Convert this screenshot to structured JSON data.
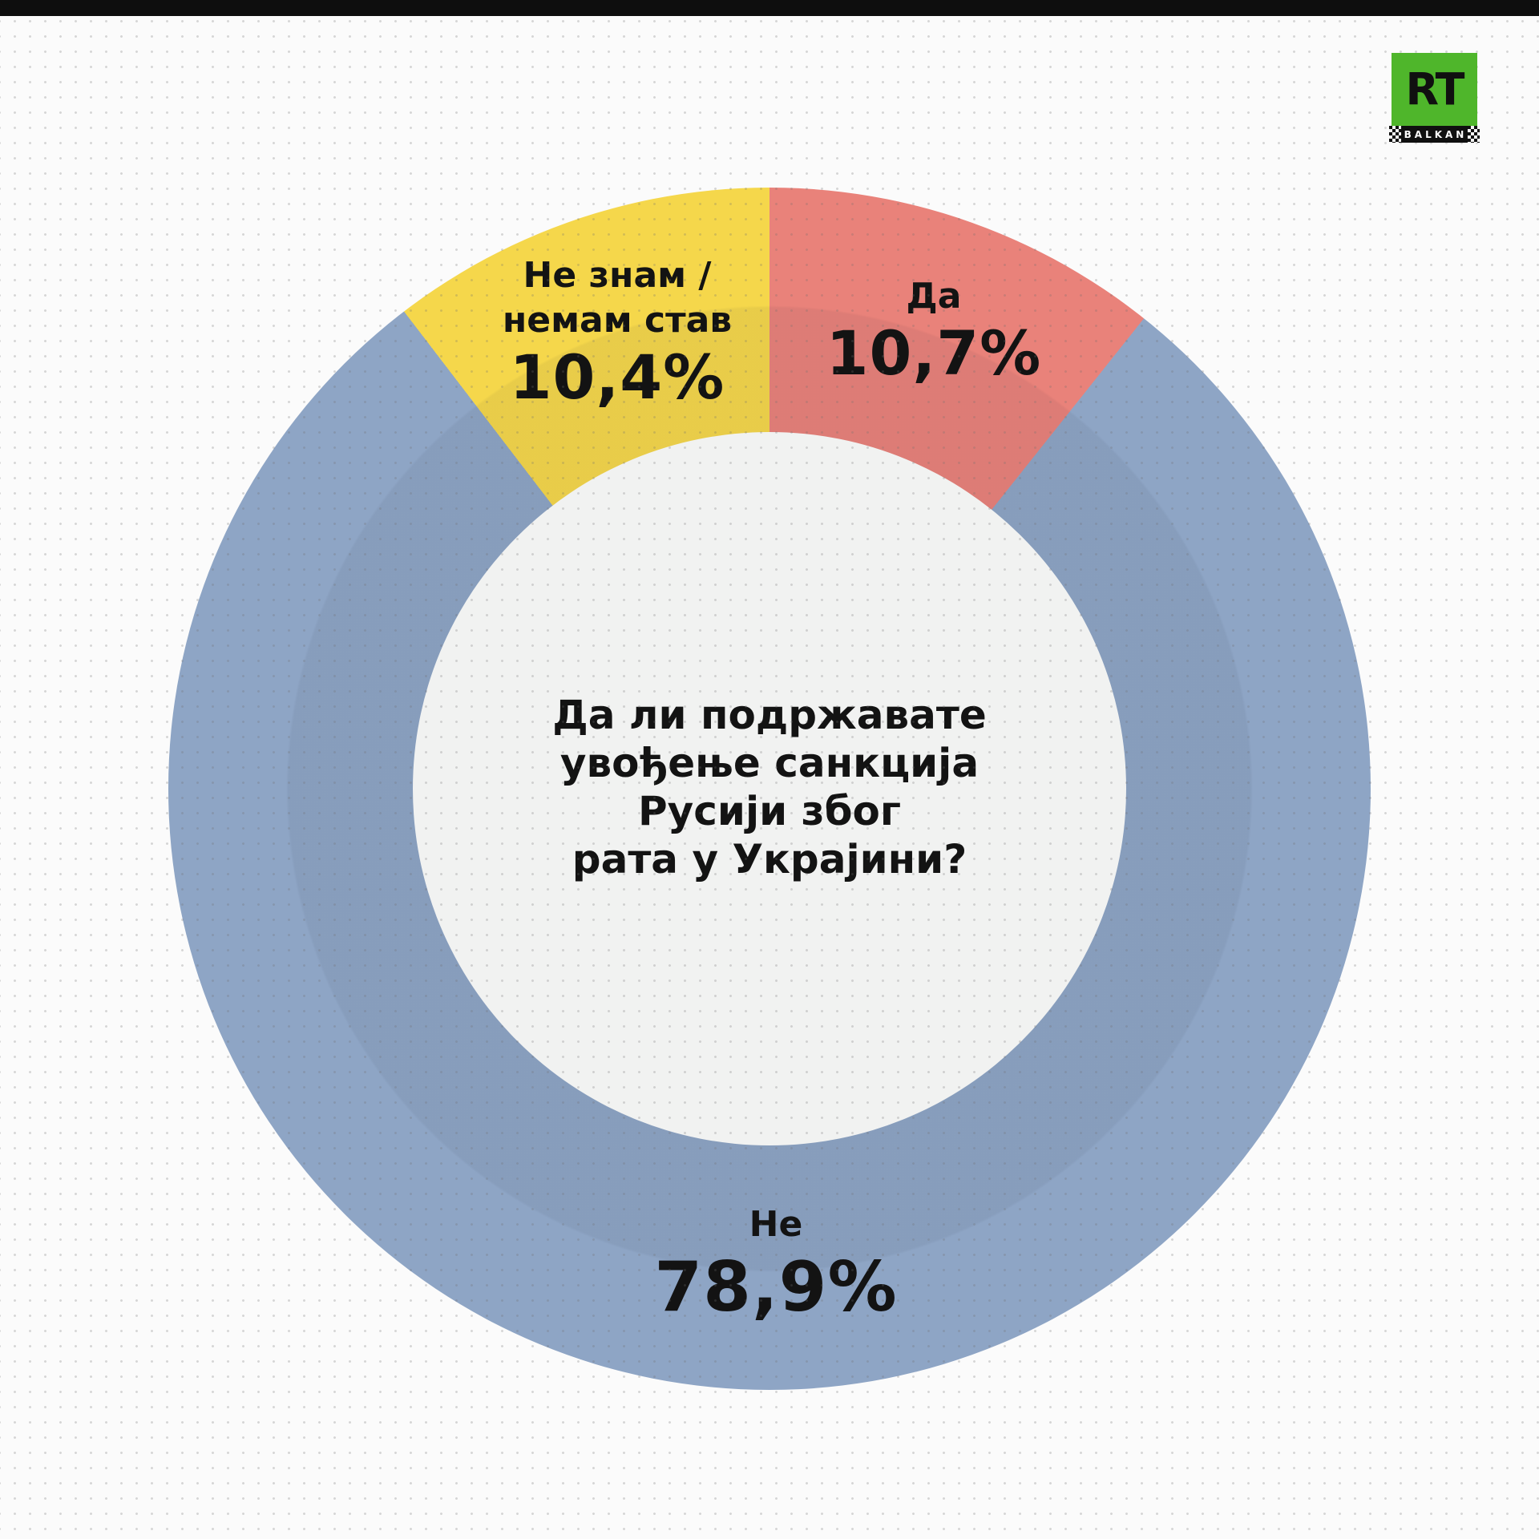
{
  "page": {
    "background": "#fbfbfb",
    "top_bar_color": "#0e0e0e",
    "dot_grid": "light-gray-dots-19px"
  },
  "logo": {
    "brand": "RT",
    "sub": "BALKAN",
    "green": "#4fb62b",
    "black": "#101010"
  },
  "chart_data": {
    "type": "pie",
    "variant": "donut",
    "question": "Да ли подржавате увођење санкција Русији због рата у Украјини?",
    "center_lines": [
      "Да ли подржавате",
      "увођење санкција",
      "Русији због",
      "рата у Украјини?"
    ],
    "series": [
      {
        "name": "Да",
        "value": 10.7,
        "display": "10,7%",
        "color": "#e9827a"
      },
      {
        "name": "Не",
        "value": 78.9,
        "display": "78,9%",
        "color": "#8ea5c5"
      },
      {
        "name": "Не знам / немам став",
        "value": 10.4,
        "display": "10,4%",
        "color": "#f5d74b"
      }
    ],
    "start_angle_deg": 0,
    "direction": "clockwise",
    "hole_color": "#f1f2f1",
    "legend_position": "labels-on-slices"
  },
  "labels": {
    "yes": {
      "line1": "Да",
      "pct": "10,7%"
    },
    "no": {
      "line1": "Не",
      "pct": "78,9%"
    },
    "dk": {
      "line1": "Не знам /",
      "line2": "немам став",
      "pct": "10,4%"
    }
  }
}
